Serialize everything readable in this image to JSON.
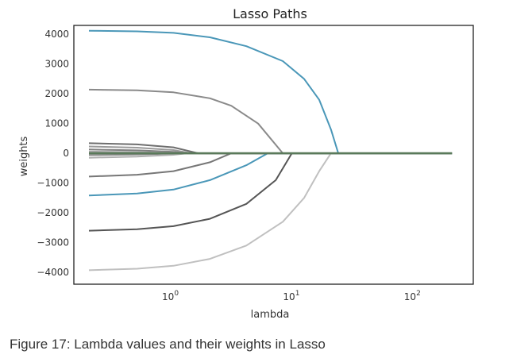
{
  "chart_data": {
    "type": "line",
    "title": "Lasso Paths",
    "xlabel": "lambda",
    "ylabel": "weights",
    "xscale": "log",
    "xlim": [
      0.15,
      300
    ],
    "ylim": [
      -4400,
      4300
    ],
    "yticks": [
      "4000",
      "3000",
      "2000",
      "1000",
      "0",
      "−1000",
      "−2000",
      "−3000",
      "−4000"
    ],
    "ytick_values": [
      4000,
      3000,
      2000,
      1000,
      0,
      -1000,
      -2000,
      -3000,
      -4000
    ],
    "xticks": [
      {
        "value": 1,
        "base": "10",
        "exp": "0"
      },
      {
        "value": 10,
        "base": "10",
        "exp": "1"
      },
      {
        "value": 100,
        "base": "10",
        "exp": "2"
      }
    ],
    "grid": false,
    "series": [
      {
        "color": "#4a97b8",
        "x": [
          0.2,
          0.5,
          1,
          2,
          4,
          8,
          12,
          16,
          20,
          23,
          200
        ],
        "y": [
          4120,
          4100,
          4050,
          3900,
          3600,
          3100,
          2500,
          1800,
          800,
          0,
          0
        ]
      },
      {
        "color": "#8a8a8a",
        "x": [
          0.2,
          0.5,
          1,
          2,
          3,
          5,
          8,
          200
        ],
        "y": [
          2140,
          2120,
          2050,
          1850,
          1600,
          1000,
          0,
          0
        ]
      },
      {
        "color": "#6e6e6e",
        "x": [
          0.2,
          0.5,
          1,
          1.6,
          200
        ],
        "y": [
          340,
          300,
          200,
          0,
          0
        ]
      },
      {
        "color": "#9a9a9a",
        "x": [
          0.2,
          0.5,
          1,
          1.4,
          200
        ],
        "y": [
          230,
          190,
          110,
          0,
          0
        ]
      },
      {
        "color": "#7f7f7f",
        "x": [
          0.2,
          0.5,
          1,
          1.3,
          200
        ],
        "y": [
          130,
          100,
          50,
          0,
          0
        ]
      },
      {
        "color": "#a5a5a5",
        "x": [
          0.2,
          0.5,
          1,
          1.2,
          200
        ],
        "y": [
          60,
          40,
          15,
          0,
          0
        ]
      },
      {
        "color": "#8b8b8b",
        "x": [
          0.2,
          0.5,
          1,
          1.2,
          200
        ],
        "y": [
          -60,
          -40,
          -10,
          0,
          0
        ]
      },
      {
        "color": "#b0b0b0",
        "x": [
          0.2,
          0.5,
          1,
          1.3,
          200
        ],
        "y": [
          -150,
          -110,
          -50,
          0,
          0
        ]
      },
      {
        "color": "#777777",
        "x": [
          0.2,
          0.5,
          1,
          2,
          3,
          200
        ],
        "y": [
          -780,
          -720,
          -600,
          -300,
          0,
          0
        ]
      },
      {
        "color": "#4a97b8",
        "x": [
          0.2,
          0.5,
          1,
          2,
          4,
          6,
          200
        ],
        "y": [
          -1420,
          -1350,
          -1220,
          -900,
          -400,
          0,
          0
        ]
      },
      {
        "color": "#555555",
        "x": [
          0.2,
          0.5,
          1,
          2,
          4,
          7,
          9.5,
          200
        ],
        "y": [
          -2600,
          -2550,
          -2450,
          -2200,
          -1700,
          -900,
          0,
          0
        ]
      },
      {
        "color": "#c0c0c0",
        "x": [
          0.2,
          0.5,
          1,
          2,
          4,
          8,
          12,
          16,
          20,
          200
        ],
        "y": [
          -3930,
          -3880,
          -3780,
          -3550,
          -3100,
          -2300,
          -1500,
          -600,
          0,
          0
        ]
      },
      {
        "color": "#5a7a5a",
        "x": [
          0.2,
          200
        ],
        "y": [
          0,
          0
        ]
      }
    ]
  },
  "caption": "Figure 17: Lambda values and their weights in Lasso"
}
